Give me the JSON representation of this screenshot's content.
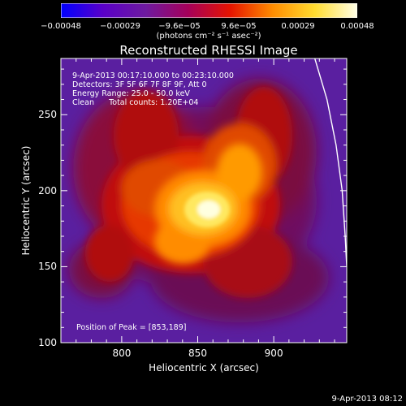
{
  "colorbar": {
    "ticks": [
      "−0.00048",
      "−0.00029",
      "−9.6e−05",
      "9.6e−05",
      "0.00029",
      "0.00048"
    ],
    "units": "(photons cm⁻² s⁻¹ asec⁻²)",
    "range": [
      -0.00048,
      0.00048
    ],
    "colors": [
      "#0000ff",
      "#5a00c8",
      "#6e1aa0",
      "#a5005a",
      "#e61400",
      "#ff8c00",
      "#ffdc30",
      "#ffffe8"
    ]
  },
  "annotations": {
    "time_range": "9-Apr-2013 00:17:10.000 to 00:23:10.000",
    "detectors": "Detectors: 3F 5F 6F 7F 8F 9F, Att 0",
    "energy": "Energy Range: 25.0 - 50.0 keV",
    "clean": "Clean      Total counts: 1.20E+04",
    "peak": "Position of Peak = [853,189]"
  },
  "footer": {
    "date": "9-Apr-2013 08:12"
  },
  "chart_data": {
    "type": "heatmap",
    "title": "Reconstructed RHESSI Image",
    "xlabel": "Heliocentric X (arcsec)",
    "ylabel": "Heliocentric Y (arcsec)",
    "xlim": [
      760,
      948
    ],
    "ylim": [
      100,
      287
    ],
    "xticks": [
      800,
      850,
      900
    ],
    "yticks": [
      100,
      150,
      200,
      250
    ],
    "peak": {
      "x": 853,
      "y": 189
    },
    "limb_curve": [
      [
        927,
        287
      ],
      [
        935,
        260
      ],
      [
        941,
        230
      ],
      [
        945,
        200
      ],
      [
        947,
        170
      ],
      [
        948,
        150
      ]
    ]
  }
}
